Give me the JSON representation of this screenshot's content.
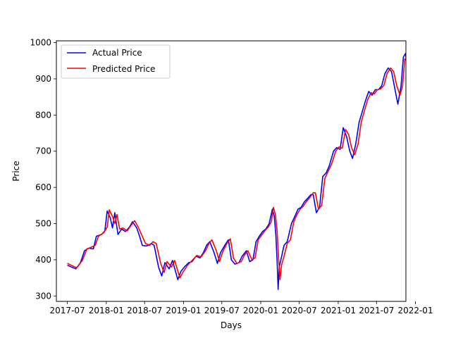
{
  "chart_data": {
    "type": "line",
    "title": "",
    "xlabel": "Days",
    "ylabel": "Price",
    "xlim": [
      "2017-05-10",
      "2021-11-17"
    ],
    "ylim": [
      285,
      1005
    ],
    "x_ticks": [
      "2017-07",
      "2018-01",
      "2018-07",
      "2019-01",
      "2019-07",
      "2020-01",
      "2020-07",
      "2021-01",
      "2021-07",
      "2022-01"
    ],
    "y_ticks": [
      300,
      400,
      500,
      600,
      700,
      800,
      900,
      1000
    ],
    "grid": false,
    "legend": "upper-left",
    "series": [
      {
        "name": "Actual Price",
        "color": "#0000ff",
        "points": [
          [
            "2017-07-01",
            385
          ],
          [
            "2017-07-20",
            380
          ],
          [
            "2017-08-10",
            375
          ],
          [
            "2017-09-01",
            392
          ],
          [
            "2017-09-20",
            425
          ],
          [
            "2017-10-10",
            432
          ],
          [
            "2017-11-01",
            430
          ],
          [
            "2017-11-15",
            465
          ],
          [
            "2017-12-10",
            470
          ],
          [
            "2017-12-25",
            480
          ],
          [
            "2018-01-05",
            535
          ],
          [
            "2018-01-20",
            515
          ],
          [
            "2018-01-30",
            488
          ],
          [
            "2018-02-10",
            530
          ],
          [
            "2018-02-25",
            470
          ],
          [
            "2018-03-15",
            485
          ],
          [
            "2018-04-01",
            478
          ],
          [
            "2018-04-20",
            490
          ],
          [
            "2018-05-05",
            505
          ],
          [
            "2018-05-25",
            488
          ],
          [
            "2018-06-10",
            460
          ],
          [
            "2018-06-20",
            440
          ],
          [
            "2018-07-05",
            438
          ],
          [
            "2018-07-20",
            440
          ],
          [
            "2018-08-01",
            445
          ],
          [
            "2018-08-15",
            440
          ],
          [
            "2018-09-05",
            380
          ],
          [
            "2018-09-20",
            355
          ],
          [
            "2018-10-05",
            392
          ],
          [
            "2018-10-25",
            375
          ],
          [
            "2018-11-10",
            398
          ],
          [
            "2018-12-05",
            345
          ],
          [
            "2018-12-20",
            368
          ],
          [
            "2019-01-05",
            380
          ],
          [
            "2019-01-25",
            392
          ],
          [
            "2019-02-10",
            395
          ],
          [
            "2019-03-01",
            410
          ],
          [
            "2019-03-20",
            405
          ],
          [
            "2019-04-05",
            420
          ],
          [
            "2019-04-20",
            440
          ],
          [
            "2019-05-05",
            450
          ],
          [
            "2019-05-25",
            420
          ],
          [
            "2019-06-10",
            390
          ],
          [
            "2019-06-25",
            420
          ],
          [
            "2019-07-15",
            440
          ],
          [
            "2019-08-01",
            455
          ],
          [
            "2019-08-15",
            400
          ],
          [
            "2019-09-01",
            388
          ],
          [
            "2019-09-20",
            392
          ],
          [
            "2019-10-05",
            410
          ],
          [
            "2019-10-25",
            425
          ],
          [
            "2019-11-10",
            395
          ],
          [
            "2019-11-25",
            400
          ],
          [
            "2019-12-10",
            450
          ],
          [
            "2019-12-25",
            465
          ],
          [
            "2020-01-10",
            478
          ],
          [
            "2020-01-25",
            485
          ],
          [
            "2020-02-10",
            500
          ],
          [
            "2020-02-25",
            540
          ],
          [
            "2020-03-05",
            520
          ],
          [
            "2020-03-12",
            470
          ],
          [
            "2020-03-18",
            398
          ],
          [
            "2020-03-23",
            318
          ],
          [
            "2020-03-28",
            380
          ],
          [
            "2020-04-05",
            400
          ],
          [
            "2020-04-20",
            440
          ],
          [
            "2020-05-05",
            450
          ],
          [
            "2020-05-25",
            500
          ],
          [
            "2020-06-10",
            520
          ],
          [
            "2020-06-25",
            540
          ],
          [
            "2020-07-10",
            545
          ],
          [
            "2020-07-25",
            560
          ],
          [
            "2020-08-10",
            570
          ],
          [
            "2020-08-25",
            580
          ],
          [
            "2020-09-05",
            580
          ],
          [
            "2020-09-20",
            530
          ],
          [
            "2020-10-05",
            545
          ],
          [
            "2020-10-20",
            630
          ],
          [
            "2020-11-05",
            640
          ],
          [
            "2020-11-20",
            660
          ],
          [
            "2020-12-10",
            700
          ],
          [
            "2020-12-25",
            710
          ],
          [
            "2021-01-10",
            705
          ],
          [
            "2021-01-25",
            765
          ],
          [
            "2021-02-10",
            740
          ],
          [
            "2021-02-25",
            700
          ],
          [
            "2021-03-10",
            680
          ],
          [
            "2021-03-25",
            720
          ],
          [
            "2021-04-10",
            780
          ],
          [
            "2021-04-25",
            810
          ],
          [
            "2021-05-10",
            840
          ],
          [
            "2021-05-25",
            865
          ],
          [
            "2021-06-10",
            855
          ],
          [
            "2021-06-25",
            870
          ],
          [
            "2021-07-10",
            870
          ],
          [
            "2021-07-25",
            880
          ],
          [
            "2021-08-10",
            915
          ],
          [
            "2021-08-25",
            930
          ],
          [
            "2021-09-10",
            920
          ],
          [
            "2021-09-25",
            875
          ],
          [
            "2021-10-10",
            830
          ],
          [
            "2021-10-25",
            880
          ],
          [
            "2021-11-05",
            960
          ],
          [
            "2021-11-15",
            970
          ],
          [
            "2021-11-22",
            935
          ],
          [
            "2021-11-30",
            905
          ],
          [
            "2021-12-08",
            930
          ]
        ]
      },
      {
        "name": "Predicted Price",
        "color": "#ff0000",
        "points": [
          [
            "2017-07-01",
            390
          ],
          [
            "2017-07-25",
            383
          ],
          [
            "2017-08-15",
            378
          ],
          [
            "2017-09-10",
            398
          ],
          [
            "2017-10-01",
            430
          ],
          [
            "2017-10-20",
            434
          ],
          [
            "2017-11-10",
            440
          ],
          [
            "2017-11-25",
            465
          ],
          [
            "2017-12-20",
            475
          ],
          [
            "2018-01-05",
            490
          ],
          [
            "2018-01-15",
            538
          ],
          [
            "2018-01-30",
            520
          ],
          [
            "2018-02-10",
            500
          ],
          [
            "2018-02-20",
            525
          ],
          [
            "2018-03-05",
            485
          ],
          [
            "2018-03-20",
            488
          ],
          [
            "2018-04-10",
            480
          ],
          [
            "2018-04-28",
            495
          ],
          [
            "2018-05-15",
            508
          ],
          [
            "2018-06-01",
            490
          ],
          [
            "2018-06-20",
            465
          ],
          [
            "2018-07-05",
            445
          ],
          [
            "2018-07-25",
            440
          ],
          [
            "2018-08-10",
            450
          ],
          [
            "2018-08-25",
            445
          ],
          [
            "2018-09-15",
            390
          ],
          [
            "2018-10-01",
            365
          ],
          [
            "2018-10-15",
            395
          ],
          [
            "2018-11-05",
            380
          ],
          [
            "2018-11-20",
            398
          ],
          [
            "2018-12-15",
            350
          ],
          [
            "2019-01-01",
            368
          ],
          [
            "2019-01-20",
            385
          ],
          [
            "2019-02-10",
            398
          ],
          [
            "2019-03-05",
            412
          ],
          [
            "2019-03-25",
            408
          ],
          [
            "2019-04-15",
            425
          ],
          [
            "2019-05-01",
            445
          ],
          [
            "2019-05-15",
            455
          ],
          [
            "2019-06-05",
            425
          ],
          [
            "2019-06-20",
            395
          ],
          [
            "2019-07-05",
            422
          ],
          [
            "2019-07-25",
            445
          ],
          [
            "2019-08-10",
            458
          ],
          [
            "2019-08-25",
            405
          ],
          [
            "2019-09-10",
            390
          ],
          [
            "2019-10-01",
            395
          ],
          [
            "2019-10-15",
            412
          ],
          [
            "2019-11-01",
            425
          ],
          [
            "2019-11-20",
            400
          ],
          [
            "2019-12-05",
            405
          ],
          [
            "2019-12-20",
            455
          ],
          [
            "2020-01-05",
            468
          ],
          [
            "2020-01-20",
            480
          ],
          [
            "2020-02-05",
            490
          ],
          [
            "2020-02-20",
            505
          ],
          [
            "2020-03-01",
            545
          ],
          [
            "2020-03-10",
            525
          ],
          [
            "2020-03-18",
            480
          ],
          [
            "2020-03-25",
            405
          ],
          [
            "2020-04-01",
            345
          ],
          [
            "2020-04-08",
            385
          ],
          [
            "2020-04-20",
            410
          ],
          [
            "2020-05-05",
            445
          ],
          [
            "2020-05-20",
            455
          ],
          [
            "2020-06-05",
            505
          ],
          [
            "2020-06-20",
            525
          ],
          [
            "2020-07-05",
            540
          ],
          [
            "2020-07-20",
            548
          ],
          [
            "2020-08-05",
            562
          ],
          [
            "2020-08-20",
            572
          ],
          [
            "2020-09-05",
            585
          ],
          [
            "2020-09-15",
            585
          ],
          [
            "2020-09-30",
            540
          ],
          [
            "2020-10-15",
            550
          ],
          [
            "2020-10-30",
            625
          ],
          [
            "2020-11-15",
            645
          ],
          [
            "2020-12-01",
            665
          ],
          [
            "2020-12-20",
            700
          ],
          [
            "2021-01-05",
            712
          ],
          [
            "2021-01-20",
            708
          ],
          [
            "2021-02-05",
            760
          ],
          [
            "2021-02-20",
            745
          ],
          [
            "2021-03-05",
            710
          ],
          [
            "2021-03-20",
            690
          ],
          [
            "2021-04-05",
            720
          ],
          [
            "2021-04-20",
            780
          ],
          [
            "2021-05-05",
            812
          ],
          [
            "2021-05-20",
            842
          ],
          [
            "2021-06-05",
            862
          ],
          [
            "2021-06-20",
            858
          ],
          [
            "2021-07-05",
            870
          ],
          [
            "2021-07-20",
            872
          ],
          [
            "2021-08-05",
            882
          ],
          [
            "2021-08-20",
            915
          ],
          [
            "2021-09-05",
            930
          ],
          [
            "2021-09-20",
            920
          ],
          [
            "2021-10-05",
            880
          ],
          [
            "2021-10-20",
            855
          ],
          [
            "2021-11-01",
            880
          ],
          [
            "2021-11-12",
            955
          ],
          [
            "2021-11-20",
            950
          ],
          [
            "2021-11-28",
            920
          ],
          [
            "2021-12-08",
            925
          ]
        ]
      }
    ]
  }
}
